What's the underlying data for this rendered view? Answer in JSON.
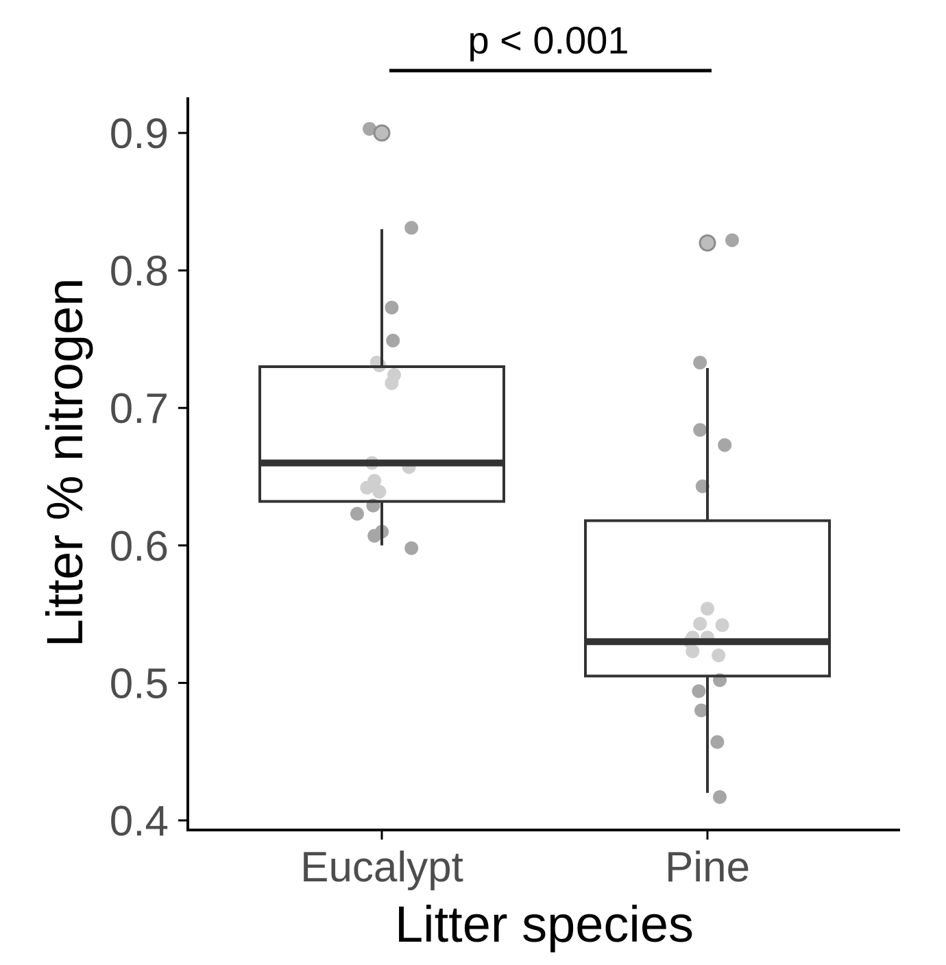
{
  "chart_data": {
    "type": "box",
    "xlabel": "Litter species",
    "ylabel": "Litter % nitrogen",
    "categories": [
      "Eucalypt",
      "Pine"
    ],
    "ylim": [
      0.395,
      0.925
    ],
    "yticks": [
      {
        "value": 0.4,
        "label": "0.4"
      },
      {
        "value": 0.5,
        "label": "0.5"
      },
      {
        "value": 0.6,
        "label": "0.6"
      },
      {
        "value": 0.7,
        "label": "0.7"
      },
      {
        "value": 0.8,
        "label": "0.8"
      },
      {
        "value": 0.9,
        "label": "0.9"
      }
    ],
    "grid": false,
    "boxes": [
      {
        "category": "Eucalypt",
        "whisker_low": 0.6,
        "q1": 0.632,
        "median": 0.66,
        "q3": 0.73,
        "whisker_high": 0.83
      },
      {
        "category": "Pine",
        "whisker_low": 0.42,
        "q1": 0.505,
        "median": 0.53,
        "q3": 0.618,
        "whisker_high": 0.729
      }
    ],
    "points": [
      {
        "category": "Eucalypt",
        "jitter": -0.05,
        "y": 0.903,
        "shade": "dark"
      },
      {
        "category": "Eucalypt",
        "jitter": 0.0,
        "y": 0.9,
        "shade": "outlier"
      },
      {
        "category": "Eucalypt",
        "jitter": 0.12,
        "y": 0.831,
        "shade": "dark"
      },
      {
        "category": "Eucalypt",
        "jitter": 0.04,
        "y": 0.773,
        "shade": "dark"
      },
      {
        "category": "Eucalypt",
        "jitter": 0.045,
        "y": 0.749,
        "shade": "dark"
      },
      {
        "category": "Eucalypt",
        "jitter": -0.02,
        "y": 0.733,
        "shade": "light"
      },
      {
        "category": "Eucalypt",
        "jitter": -0.01,
        "y": 0.731,
        "shade": "light"
      },
      {
        "category": "Eucalypt",
        "jitter": 0.05,
        "y": 0.724,
        "shade": "light"
      },
      {
        "category": "Eucalypt",
        "jitter": 0.04,
        "y": 0.718,
        "shade": "light"
      },
      {
        "category": "Eucalypt",
        "jitter": -0.04,
        "y": 0.66,
        "shade": "light"
      },
      {
        "category": "Eucalypt",
        "jitter": 0.11,
        "y": 0.657,
        "shade": "light"
      },
      {
        "category": "Eucalypt",
        "jitter": -0.03,
        "y": 0.647,
        "shade": "light"
      },
      {
        "category": "Eucalypt",
        "jitter": -0.06,
        "y": 0.642,
        "shade": "light"
      },
      {
        "category": "Eucalypt",
        "jitter": -0.01,
        "y": 0.639,
        "shade": "light"
      },
      {
        "category": "Eucalypt",
        "jitter": -0.035,
        "y": 0.629,
        "shade": "dark"
      },
      {
        "category": "Eucalypt",
        "jitter": -0.1,
        "y": 0.623,
        "shade": "dark"
      },
      {
        "category": "Eucalypt",
        "jitter": 0.0,
        "y": 0.61,
        "shade": "dark"
      },
      {
        "category": "Eucalypt",
        "jitter": -0.03,
        "y": 0.607,
        "shade": "dark"
      },
      {
        "category": "Eucalypt",
        "jitter": 0.12,
        "y": 0.598,
        "shade": "dark"
      },
      {
        "category": "Pine",
        "jitter": 0.0,
        "y": 0.82,
        "shade": "outlier"
      },
      {
        "category": "Pine",
        "jitter": 0.1,
        "y": 0.822,
        "shade": "dark"
      },
      {
        "category": "Pine",
        "jitter": -0.03,
        "y": 0.733,
        "shade": "dark"
      },
      {
        "category": "Pine",
        "jitter": -0.03,
        "y": 0.684,
        "shade": "dark"
      },
      {
        "category": "Pine",
        "jitter": 0.07,
        "y": 0.673,
        "shade": "dark"
      },
      {
        "category": "Pine",
        "jitter": -0.02,
        "y": 0.643,
        "shade": "dark"
      },
      {
        "category": "Pine",
        "jitter": 0.0,
        "y": 0.554,
        "shade": "light"
      },
      {
        "category": "Pine",
        "jitter": -0.03,
        "y": 0.543,
        "shade": "light"
      },
      {
        "category": "Pine",
        "jitter": 0.06,
        "y": 0.542,
        "shade": "light"
      },
      {
        "category": "Pine",
        "jitter": -0.06,
        "y": 0.533,
        "shade": "light"
      },
      {
        "category": "Pine",
        "jitter": 0.0,
        "y": 0.533,
        "shade": "light"
      },
      {
        "category": "Pine",
        "jitter": -0.07,
        "y": 0.53,
        "shade": "light"
      },
      {
        "category": "Pine",
        "jitter": -0.06,
        "y": 0.523,
        "shade": "light"
      },
      {
        "category": "Pine",
        "jitter": 0.045,
        "y": 0.52,
        "shade": "light"
      },
      {
        "category": "Pine",
        "jitter": 0.05,
        "y": 0.502,
        "shade": "dark"
      },
      {
        "category": "Pine",
        "jitter": -0.035,
        "y": 0.494,
        "shade": "dark"
      },
      {
        "category": "Pine",
        "jitter": -0.025,
        "y": 0.48,
        "shade": "dark"
      },
      {
        "category": "Pine",
        "jitter": 0.04,
        "y": 0.457,
        "shade": "dark"
      },
      {
        "category": "Pine",
        "jitter": 0.05,
        "y": 0.417,
        "shade": "dark"
      }
    ],
    "annotation": {
      "text": "p < 0.001",
      "from": "Eucalypt",
      "to": "Pine"
    },
    "colors": {
      "box_stroke": "#333333",
      "point_dark": "#a6a6a6",
      "point_light": "#cfcfcf",
      "outlier_fill": "#bdbdbd",
      "outlier_stroke": "#8c8c8c",
      "axis": "#000000",
      "tick_text": "#4d4d4d"
    }
  }
}
